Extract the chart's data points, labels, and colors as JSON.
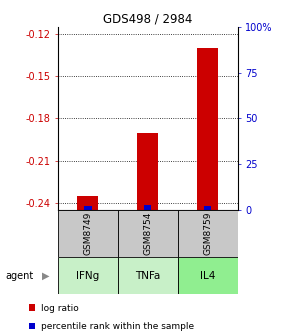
{
  "title": "GDS498 / 2984",
  "samples": [
    "GSM8749",
    "GSM8754",
    "GSM8759"
  ],
  "agents": [
    "IFNg",
    "TNFa",
    "IL4"
  ],
  "log_ratio": [
    -0.235,
    -0.19,
    -0.13
  ],
  "percentile": [
    2,
    3,
    2
  ],
  "ylim_left": [
    -0.245,
    -0.115
  ],
  "ylim_right": [
    0,
    100
  ],
  "yticks_left": [
    -0.24,
    -0.21,
    -0.18,
    -0.15,
    -0.12
  ],
  "yticks_right": [
    0,
    25,
    50,
    75,
    100
  ],
  "ytick_labels_left": [
    "-0.24",
    "-0.21",
    "-0.18",
    "-0.15",
    "-0.12"
  ],
  "ytick_labels_right": [
    "0",
    "25",
    "50",
    "75",
    "100%"
  ],
  "red_color": "#cc0000",
  "blue_color": "#0000cc",
  "agent_colors": [
    "#c8f0c8",
    "#c8f0c8",
    "#90ee90"
  ],
  "gsm_bg": "#c8c8c8",
  "legend_red": "log ratio",
  "legend_blue": "percentile rank within the sample"
}
